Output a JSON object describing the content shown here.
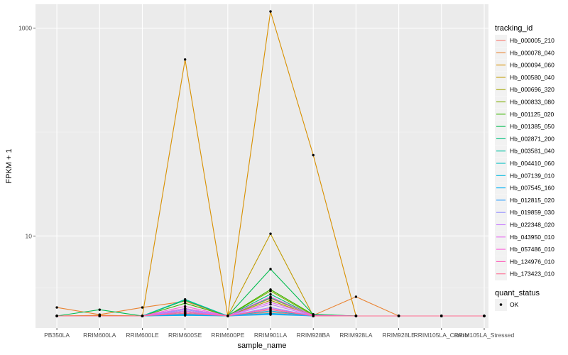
{
  "chart_data": {
    "type": "line",
    "xlabel": "sample_name",
    "ylabel": "FPKM + 1",
    "y_scale": "log10",
    "ylim": [
      1.3,
      1700
    ],
    "y_ticks": [
      {
        "value": 10,
        "label": "10"
      },
      {
        "value": 1000,
        "label": "1000"
      }
    ],
    "categories": [
      "PB350LA",
      "RRIM600LA",
      "RRIM600LE",
      "RRIM600SE",
      "RRIM600PE",
      "RRIM901LA",
      "RRIM928BA",
      "RRIM928LA",
      "RRIM928LE",
      "RRIM105LA_Control",
      "RRIM105LA_Stressed"
    ],
    "grid": true,
    "background": "#EBEBEB",
    "legend": {
      "position": "right",
      "tracking_title": "tracking_id",
      "status_title": "quant_status",
      "status_items": [
        {
          "label": "OK",
          "color": "#000000"
        }
      ]
    },
    "series": [
      {
        "name": "Hb_000005_210",
        "color": "#F8766D",
        "values": [
          1.7,
          1.72,
          1.7,
          1.8,
          1.7,
          1.85,
          1.7,
          1.7,
          1.7,
          1.7,
          1.7
        ]
      },
      {
        "name": "Hb_000078_040",
        "color": "#EA8331",
        "values": [
          2.05,
          1.75,
          2.05,
          2.35,
          1.7,
          2.5,
          1.72,
          2.6,
          1.7,
          1.7,
          1.7
        ]
      },
      {
        "name": "Hb_000094_060",
        "color": "#D89000",
        "values": [
          1.7,
          1.72,
          1.7,
          500,
          1.7,
          1450,
          60,
          1.7,
          1.7,
          1.7,
          1.7
        ]
      },
      {
        "name": "Hb_000580_040",
        "color": "#C09B00",
        "values": [
          1.7,
          1.7,
          1.7,
          1.75,
          1.7,
          10.5,
          1.7,
          1.7,
          1.7,
          1.7,
          1.7
        ]
      },
      {
        "name": "Hb_000696_320",
        "color": "#A3A500",
        "values": [
          1.7,
          1.7,
          1.7,
          1.9,
          1.7,
          2.4,
          1.7,
          1.7,
          1.7,
          1.7,
          1.7
        ]
      },
      {
        "name": "Hb_000833_080",
        "color": "#7CAE00",
        "values": [
          1.7,
          1.7,
          1.7,
          1.85,
          1.7,
          2.95,
          1.72,
          1.7,
          1.7,
          1.7,
          1.7
        ]
      },
      {
        "name": "Hb_001125_020",
        "color": "#39B600",
        "values": [
          1.7,
          1.7,
          1.7,
          2.25,
          1.7,
          3.05,
          1.75,
          1.7,
          1.7,
          1.7,
          1.7
        ]
      },
      {
        "name": "Hb_001385_050",
        "color": "#00BB4E",
        "values": [
          1.7,
          1.95,
          1.7,
          2.4,
          1.7,
          4.8,
          1.76,
          1.7,
          1.7,
          1.7,
          1.7
        ]
      },
      {
        "name": "Hb_002871_200",
        "color": "#00BF7D",
        "values": [
          1.7,
          1.7,
          1.7,
          2.0,
          1.7,
          2.75,
          1.7,
          1.7,
          1.7,
          1.7,
          1.7
        ]
      },
      {
        "name": "Hb_003581_040",
        "color": "#00C1A3",
        "values": [
          1.7,
          1.7,
          1.7,
          2.45,
          1.7,
          2.55,
          1.72,
          1.7,
          1.7,
          1.7,
          1.7
        ]
      },
      {
        "name": "Hb_004410_060",
        "color": "#00BFC4",
        "values": [
          1.7,
          1.7,
          1.7,
          1.8,
          1.7,
          1.8,
          1.7,
          1.7,
          1.7,
          1.7,
          1.7
        ]
      },
      {
        "name": "Hb_007139_010",
        "color": "#00BAE0",
        "values": [
          1.7,
          1.7,
          1.7,
          1.75,
          1.7,
          1.9,
          1.7,
          1.7,
          1.7,
          1.7,
          1.7
        ]
      },
      {
        "name": "Hb_007545_160",
        "color": "#00B0F6",
        "values": [
          1.7,
          1.7,
          1.7,
          1.72,
          1.7,
          1.75,
          1.7,
          1.7,
          1.7,
          1.7,
          1.7
        ]
      },
      {
        "name": "Hb_012815_020",
        "color": "#35A2FF",
        "values": [
          1.7,
          1.7,
          1.7,
          1.78,
          1.7,
          1.78,
          1.7,
          1.7,
          1.7,
          1.7,
          1.7
        ]
      },
      {
        "name": "Hb_019859_030",
        "color": "#9590FF",
        "values": [
          1.7,
          1.7,
          1.7,
          1.95,
          1.7,
          2.05,
          1.7,
          1.7,
          1.7,
          1.7,
          1.7
        ]
      },
      {
        "name": "Hb_022348_020",
        "color": "#C77CFF",
        "values": [
          1.7,
          1.7,
          1.7,
          1.9,
          1.7,
          2.2,
          1.7,
          1.7,
          1.7,
          1.7,
          1.7
        ]
      },
      {
        "name": "Hb_043950_010",
        "color": "#E76BF3",
        "values": [
          1.7,
          1.7,
          1.7,
          2.0,
          1.7,
          2.3,
          1.72,
          1.7,
          1.7,
          1.7,
          1.7
        ]
      },
      {
        "name": "Hb_057486_010",
        "color": "#FA62DB",
        "values": [
          1.7,
          1.7,
          1.7,
          2.1,
          1.7,
          2.6,
          1.72,
          1.7,
          1.7,
          1.7,
          1.7
        ]
      },
      {
        "name": "Hb_124976_010",
        "color": "#FF62BC",
        "values": [
          1.7,
          1.7,
          1.7,
          1.85,
          1.7,
          2.0,
          1.7,
          1.7,
          1.7,
          1.7,
          1.7
        ]
      },
      {
        "name": "Hb_173423_010",
        "color": "#FF6C91",
        "values": [
          1.7,
          1.7,
          1.7,
          1.8,
          1.7,
          1.95,
          1.7,
          1.7,
          1.7,
          1.7,
          1.7
        ]
      }
    ]
  }
}
